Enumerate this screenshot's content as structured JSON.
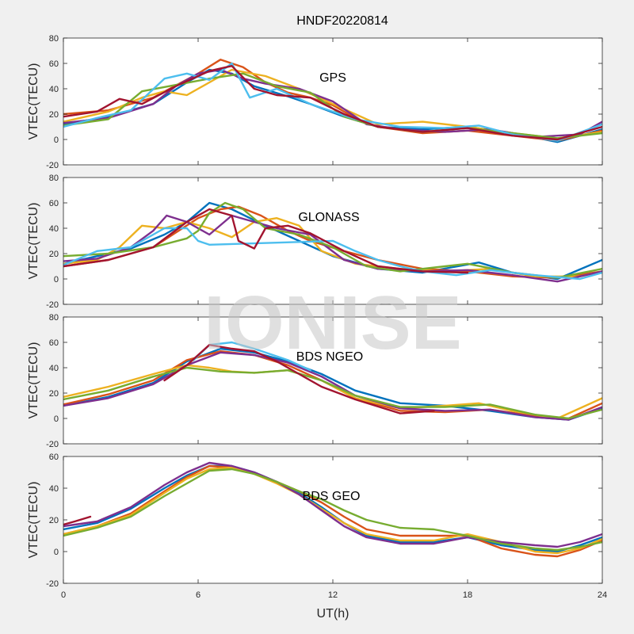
{
  "figure": {
    "title": "HNDF20220814",
    "watermark": "IONISE",
    "colors": [
      "#0072BD",
      "#D95319",
      "#EDB120",
      "#7E2F8E",
      "#77AC30",
      "#4DBEEE",
      "#A2142F"
    ]
  },
  "chart_data": [
    {
      "type": "line",
      "annotation": "GPS",
      "ylabel": "VTEC(TECU)",
      "xlabel": "",
      "xlim": [
        0,
        24
      ],
      "ylim": [
        -20,
        80
      ],
      "yticks": [
        -20,
        0,
        20,
        40,
        60,
        80
      ],
      "xticks": [
        0,
        6,
        12,
        18,
        24
      ],
      "show_xticklabels": false,
      "series": [
        {
          "color": "#0072BD",
          "x": [
            0,
            2,
            4,
            5.5,
            6.5,
            7.5,
            8.5,
            10,
            11,
            12.5,
            14,
            16,
            18,
            20,
            22,
            24
          ],
          "y": [
            12,
            18,
            28,
            45,
            55,
            52,
            42,
            34,
            28,
            18,
            10,
            8,
            10,
            5,
            -2,
            8
          ]
        },
        {
          "color": "#D95319",
          "x": [
            0,
            2,
            4,
            6,
            7,
            8,
            9,
            10,
            11,
            12,
            13,
            14,
            16,
            18,
            20,
            22,
            24
          ],
          "y": [
            20,
            23,
            33,
            52,
            63,
            57,
            45,
            37,
            33,
            27,
            17,
            10,
            5,
            7,
            3,
            -1,
            7
          ]
        },
        {
          "color": "#EDB120",
          "x": [
            0,
            2,
            3.5,
            4.5,
            5.5,
            6.5,
            7.5,
            9,
            10.5,
            12,
            14,
            16,
            18,
            20,
            22,
            24
          ],
          "y": [
            14,
            22,
            33,
            38,
            35,
            45,
            55,
            50,
            40,
            28,
            12,
            14,
            10,
            5,
            1,
            6
          ]
        },
        {
          "color": "#7E2F8E",
          "x": [
            0,
            2,
            4,
            5,
            6,
            7,
            8,
            9,
            10.5,
            12,
            13.5,
            15,
            17,
            19,
            21,
            23,
            24
          ],
          "y": [
            13,
            17,
            28,
            42,
            52,
            55,
            48,
            44,
            40,
            30,
            12,
            8,
            6,
            8,
            2,
            4,
            14
          ]
        },
        {
          "color": "#77AC30",
          "x": [
            0,
            2,
            3.5,
            5,
            6.5,
            8,
            9.5,
            11,
            12.5,
            14,
            16,
            18,
            20,
            22,
            24
          ],
          "y": [
            11,
            16,
            38,
            43,
            48,
            52,
            42,
            37,
            18,
            10,
            6,
            9,
            5,
            1,
            5
          ]
        },
        {
          "color": "#4DBEEE",
          "x": [
            0,
            1.5,
            3,
            4.5,
            5.5,
            6.5,
            7.5,
            8.3,
            9.5,
            11,
            13,
            15,
            17,
            18.5,
            20,
            22,
            24
          ],
          "y": [
            10,
            17,
            23,
            48,
            52,
            47,
            60,
            33,
            40,
            28,
            16,
            10,
            9,
            11,
            4,
            -1,
            12
          ]
        },
        {
          "color": "#A2142F",
          "x": [
            0,
            1.5,
            2.5,
            3.5,
            5,
            6.5,
            7.5,
            8.5,
            9.5,
            11,
            12.5,
            14,
            16,
            18,
            20,
            22,
            24
          ],
          "y": [
            18,
            22,
            32,
            28,
            42,
            54,
            58,
            40,
            35,
            33,
            20,
            10,
            6,
            9,
            3,
            0,
            10
          ]
        }
      ]
    },
    {
      "type": "line",
      "annotation": "GLONASS",
      "ylabel": "VTEC(TECU)",
      "xlabel": "",
      "xlim": [
        0,
        24
      ],
      "ylim": [
        -20,
        80
      ],
      "yticks": [
        -20,
        0,
        20,
        40,
        60,
        80
      ],
      "xticks": [
        0,
        6,
        12,
        18,
        24
      ],
      "show_xticklabels": false,
      "series": [
        {
          "color": "#0072BD",
          "x": [
            0,
            1.5,
            3,
            4.5,
            5.5,
            6.5,
            7.5,
            9,
            10.5,
            12,
            14,
            16,
            18.5,
            20,
            22,
            24
          ],
          "y": [
            12,
            18,
            24,
            35,
            45,
            60,
            55,
            42,
            30,
            18,
            8,
            5,
            13,
            5,
            0,
            15
          ]
        },
        {
          "color": "#D95319",
          "x": [
            0,
            2,
            4,
            6,
            7,
            7.8,
            8.8,
            10,
            11,
            12.5,
            14,
            16,
            18,
            20,
            22,
            24
          ],
          "y": [
            10,
            15,
            25,
            48,
            55,
            57,
            50,
            38,
            30,
            22,
            15,
            8,
            6,
            2,
            1,
            6
          ]
        },
        {
          "color": "#EDB120",
          "x": [
            0,
            1.5,
            2.5,
            3.5,
            4.5,
            5.5,
            6.5,
            7.5,
            8.5,
            9.5,
            10.5,
            11.5,
            13,
            15,
            17,
            19,
            21,
            23,
            24
          ],
          "y": [
            12,
            15,
            25,
            42,
            40,
            45,
            40,
            33,
            45,
            48,
            42,
            22,
            12,
            8,
            6,
            8,
            2,
            2,
            6
          ]
        },
        {
          "color": "#7E2F8E",
          "x": [
            0,
            1.5,
            3,
            4,
            4.6,
            5.5,
            6.5,
            7.5,
            8.5,
            9.5,
            11,
            12.5,
            14,
            16,
            18,
            20,
            22,
            24
          ],
          "y": [
            14,
            16,
            25,
            38,
            50,
            45,
            35,
            50,
            45,
            40,
            35,
            15,
            8,
            6,
            7,
            3,
            -2,
            6
          ]
        },
        {
          "color": "#77AC30",
          "x": [
            0,
            2,
            4,
            5.5,
            6,
            6.5,
            7.2,
            8,
            9,
            10.5,
            12,
            13.5,
            15,
            17,
            18,
            20,
            22,
            24
          ],
          "y": [
            18,
            20,
            25,
            32,
            38,
            52,
            60,
            55,
            40,
            35,
            25,
            10,
            6,
            10,
            12,
            5,
            1,
            8
          ]
        },
        {
          "color": "#4DBEEE",
          "x": [
            0,
            1.5,
            3,
            4.5,
            5.5,
            6,
            6.5,
            12,
            13,
            14,
            15,
            16,
            17.5,
            19,
            21,
            23,
            24
          ],
          "y": [
            11,
            22,
            25,
            40,
            40,
            30,
            27,
            30,
            22,
            15,
            10,
            6,
            3,
            7,
            3,
            0,
            5
          ]
        },
        {
          "color": "#A2142F",
          "x": [
            0,
            2,
            4,
            5.5,
            6.5,
            7.5,
            7.8,
            8.5,
            9,
            10,
            11,
            12.5,
            14,
            16,
            18
          ],
          "y": [
            10,
            15,
            25,
            45,
            55,
            50,
            30,
            24,
            40,
            42,
            36,
            22,
            10,
            6,
            5
          ]
        }
      ]
    },
    {
      "type": "line",
      "annotation": "BDS NGEO",
      "ylabel": "VTEC(TECU)",
      "xlabel": "",
      "xlim": [
        0,
        24
      ],
      "ylim": [
        -20,
        80
      ],
      "yticks": [
        -20,
        0,
        20,
        40,
        60,
        80
      ],
      "xticks": [
        0,
        6,
        12,
        18,
        24
      ],
      "show_xticklabels": false,
      "series": [
        {
          "color": "#0072BD",
          "x": [
            0,
            2,
            4,
            5.5,
            7,
            8.5,
            10,
            11.5,
            13,
            15,
            17,
            19,
            21,
            22.5,
            24
          ],
          "y": [
            10,
            17,
            28,
            45,
            55,
            52,
            45,
            35,
            22,
            12,
            10,
            6,
            1,
            -1,
            8
          ]
        },
        {
          "color": "#D95319",
          "x": [
            0,
            2,
            4,
            5.5,
            7,
            8.5,
            10,
            11.5,
            13,
            15,
            17,
            19,
            21,
            22.5,
            24
          ],
          "y": [
            11,
            19,
            30,
            46,
            53,
            50,
            42,
            30,
            16,
            6,
            5,
            7,
            2,
            0,
            12
          ]
        },
        {
          "color": "#EDB120",
          "x": [
            0,
            2,
            4,
            5.5,
            6.5,
            7.5,
            8.5,
            10,
            11.5,
            13,
            15,
            17,
            18.5,
            20,
            22,
            24
          ],
          "y": [
            17,
            25,
            35,
            42,
            40,
            37,
            36,
            38,
            30,
            16,
            8,
            10,
            12,
            6,
            0,
            16
          ]
        },
        {
          "color": "#7E2F8E",
          "x": [
            0,
            2,
            4,
            5.5,
            7,
            8.5,
            10,
            11.5,
            13,
            15,
            17,
            19,
            21,
            22.5,
            24
          ],
          "y": [
            10,
            16,
            27,
            42,
            52,
            50,
            44,
            33,
            18,
            8,
            6,
            7,
            1,
            -1,
            9
          ]
        },
        {
          "color": "#77AC30",
          "x": [
            0,
            2,
            4,
            5.5,
            7,
            8.5,
            10,
            11.5,
            13,
            15,
            17,
            19,
            21,
            22.5,
            24
          ],
          "y": [
            15,
            22,
            33,
            40,
            37,
            36,
            38,
            30,
            18,
            9,
            9,
            11,
            3,
            0,
            7
          ]
        },
        {
          "color": "#4DBEEE",
          "x": [
            5.8,
            6.5,
            7.5,
            8.5,
            10,
            11
          ],
          "y": [
            46,
            58,
            60,
            55,
            46,
            38
          ]
        },
        {
          "color": "#A2142F",
          "x": [
            4.5,
            5.5,
            6.5,
            7.5,
            8.5,
            9.5,
            10.5,
            11.5,
            13,
            15,
            16.5
          ],
          "y": [
            30,
            42,
            58,
            55,
            53,
            45,
            35,
            25,
            15,
            4,
            6
          ]
        }
      ]
    },
    {
      "type": "line",
      "annotation": "BDS GEO",
      "ylabel": "VTEC(TECU)",
      "xlabel": "UT(h)",
      "xlim": [
        0,
        24
      ],
      "ylim": [
        -20,
        60
      ],
      "yticks": [
        -20,
        0,
        20,
        40,
        60
      ],
      "xticks": [
        0,
        6,
        12,
        18,
        24
      ],
      "show_xticklabels": true,
      "series": [
        {
          "color": "#0072BD",
          "x": [
            0,
            1.5,
            3,
            4.5,
            5.5,
            6.5,
            7.5,
            8.5,
            9.5,
            10.5,
            11.5,
            12.5,
            13.5,
            15,
            16.5,
            18,
            19.5,
            21,
            22,
            23,
            24
          ],
          "y": [
            14,
            18,
            27,
            40,
            48,
            54,
            54,
            50,
            44,
            37,
            28,
            18,
            10,
            6,
            6,
            9,
            4,
            1,
            0,
            4,
            9
          ]
        },
        {
          "color": "#D95319",
          "x": [
            0,
            1.5,
            3,
            4.5,
            5.5,
            6.5,
            7.5,
            8.5,
            9.5,
            10.5,
            11.5,
            12.5,
            13.5,
            15,
            16.5,
            18,
            19.5,
            21,
            22,
            23,
            24
          ],
          "y": [
            11,
            16,
            24,
            38,
            47,
            54,
            53,
            49,
            44,
            38,
            31,
            22,
            14,
            10,
            10,
            10,
            2,
            -2,
            -3,
            1,
            7
          ]
        },
        {
          "color": "#EDB120",
          "x": [
            0,
            1.5,
            3,
            4.5,
            5.5,
            6.5,
            7.5,
            8.5,
            9.5,
            10.5,
            11.5,
            12.5,
            13.5,
            15,
            16.5,
            18,
            19.5,
            21,
            22,
            23,
            24
          ],
          "y": [
            11,
            16,
            23,
            37,
            46,
            52,
            53,
            49,
            43,
            36,
            27,
            18,
            11,
            7,
            7,
            11,
            6,
            0,
            -1,
            2,
            8
          ]
        },
        {
          "color": "#7E2F8E",
          "x": [
            0,
            1.5,
            3,
            4.5,
            5.5,
            6.5,
            7.5,
            8.5,
            9.5,
            10.5,
            11.5,
            12.5,
            13.5,
            15,
            16.5,
            18,
            19.5,
            21,
            22,
            23,
            24
          ],
          "y": [
            16,
            19,
            28,
            42,
            50,
            56,
            54,
            50,
            44,
            36,
            26,
            16,
            9,
            5,
            5,
            9,
            6,
            4,
            3,
            6,
            11
          ]
        },
        {
          "color": "#77AC30",
          "x": [
            0,
            1.5,
            3,
            4.5,
            5.5,
            6.5,
            7.5,
            8.5,
            9.5,
            10.5,
            11.5,
            12.5,
            13.5,
            15,
            16.5,
            18,
            19.5,
            21,
            22,
            23,
            24
          ],
          "y": [
            10,
            15,
            22,
            35,
            43,
            51,
            52,
            49,
            44,
            38,
            33,
            26,
            20,
            15,
            14,
            10,
            5,
            2,
            1,
            3,
            6
          ]
        },
        {
          "color": "#A2142F",
          "x": [
            0,
            0.5,
            1.2
          ],
          "y": [
            17,
            19,
            22
          ]
        }
      ]
    }
  ]
}
